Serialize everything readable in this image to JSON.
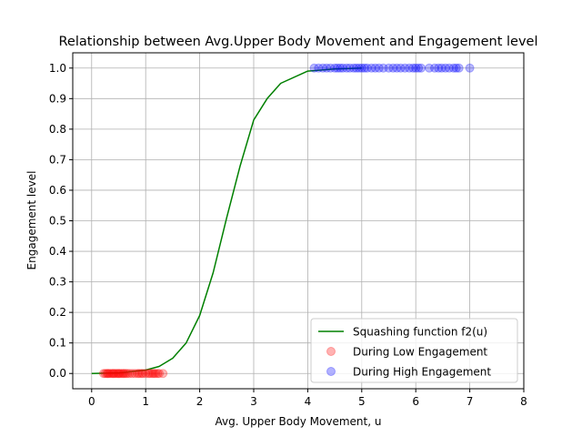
{
  "chart_data": {
    "type": "scatter",
    "title": "Relationship between Avg.Upper Body Movement and Engagement level",
    "xlabel": "Avg. Upper Body Movement, u",
    "ylabel": "Engagement level",
    "xlim": [
      -0.35,
      8
    ],
    "ylim": [
      -0.05,
      1.05
    ],
    "xticks": [
      0,
      1,
      2,
      3,
      4,
      5,
      6,
      7,
      8
    ],
    "yticks": [
      0.0,
      0.1,
      0.2,
      0.3,
      0.4,
      0.5,
      0.6,
      0.7,
      0.8,
      0.9,
      1.0
    ],
    "xtick_labels": [
      "0",
      "1",
      "2",
      "3",
      "4",
      "5",
      "6",
      "7",
      "8"
    ],
    "ytick_labels": [
      "0.0",
      "0.1",
      "0.2",
      "0.3",
      "0.4",
      "0.5",
      "0.6",
      "0.7",
      "0.8",
      "0.9",
      "1.0"
    ],
    "grid": true,
    "legend_position": "bottom-right",
    "series": [
      {
        "name": "Squashing function f2(u)",
        "kind": "line",
        "color": "#008000",
        "x": [
          0,
          0.5,
          1.0,
          1.25,
          1.5,
          1.75,
          2.0,
          2.25,
          2.5,
          2.75,
          3.0,
          3.25,
          3.5,
          4.0,
          4.5,
          5.0
        ],
        "y": [
          0.0,
          0.002,
          0.011,
          0.023,
          0.05,
          0.1,
          0.19,
          0.33,
          0.51,
          0.68,
          0.83,
          0.9,
          0.95,
          0.99,
          0.997,
          1.0
        ]
      },
      {
        "name": "During Low Engagement",
        "kind": "scatter",
        "color": "#ff0000",
        "x": [
          0.22,
          0.25,
          0.28,
          0.3,
          0.32,
          0.35,
          0.38,
          0.4,
          0.42,
          0.45,
          0.48,
          0.5,
          0.52,
          0.55,
          0.58,
          0.6,
          0.63,
          0.66,
          0.7,
          0.75,
          0.8,
          0.85,
          0.88,
          0.92,
          0.95,
          1.0,
          1.05,
          1.08,
          1.12,
          1.15,
          1.18,
          1.22,
          1.25,
          1.32
        ],
        "y": [
          0,
          0,
          0,
          0,
          0,
          0,
          0,
          0,
          0,
          0,
          0,
          0,
          0,
          0,
          0,
          0,
          0,
          0,
          0,
          0,
          0,
          0,
          0,
          0,
          0,
          0,
          0,
          0,
          0,
          0,
          0,
          0,
          0,
          0
        ]
      },
      {
        "name": "During High Engagement",
        "kind": "scatter",
        "color": "#0000ff",
        "x": [
          4.12,
          4.2,
          4.28,
          4.35,
          4.42,
          4.5,
          4.55,
          4.6,
          4.65,
          4.72,
          4.78,
          4.85,
          4.9,
          4.95,
          5.0,
          5.05,
          5.1,
          5.18,
          5.25,
          5.32,
          5.4,
          5.5,
          5.58,
          5.65,
          5.72,
          5.8,
          5.88,
          5.95,
          6.0,
          6.05,
          6.1,
          6.25,
          6.35,
          6.42,
          6.48,
          6.55,
          6.62,
          6.7,
          6.75,
          6.8,
          7.0
        ],
        "y": [
          1,
          1,
          1,
          1,
          1,
          1,
          1,
          1,
          1,
          1,
          1,
          1,
          1,
          1,
          1,
          1,
          1,
          1,
          1,
          1,
          1,
          1,
          1,
          1,
          1,
          1,
          1,
          1,
          1,
          1,
          1,
          1,
          1,
          1,
          1,
          1,
          1,
          1,
          1,
          1,
          1
        ]
      }
    ]
  }
}
